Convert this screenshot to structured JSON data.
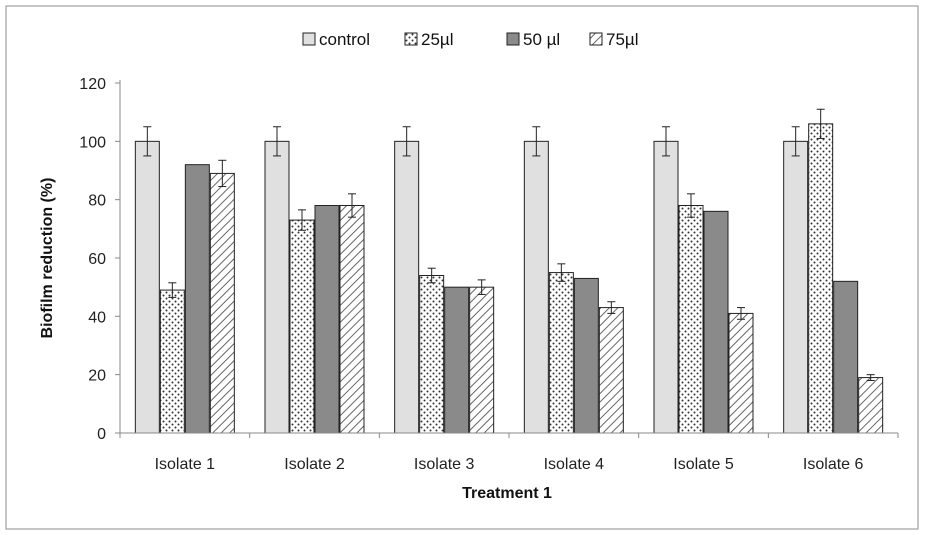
{
  "chart_data": {
    "type": "bar",
    "title": "",
    "xlabel": "Treatment 1",
    "ylabel": "Biofilm reduction (%)",
    "ylim": [
      0,
      120
    ],
    "yticks": [
      0,
      20,
      40,
      60,
      80,
      100,
      120
    ],
    "grid": false,
    "legend_position": "top",
    "categories": [
      "Isolate 1",
      "Isolate 2",
      "Isolate 3",
      "Isolate 4",
      "Isolate 5",
      "Isolate 6"
    ],
    "series": [
      {
        "name": "control",
        "pattern": "solid-light",
        "color": "#e0e0e0",
        "values": [
          100,
          100,
          100,
          100,
          100,
          100
        ],
        "errors": [
          5,
          5,
          5,
          5,
          5,
          5
        ]
      },
      {
        "name": "25µl",
        "pattern": "dots",
        "color": "#ffffff",
        "values": [
          49,
          73,
          54,
          55,
          78,
          106
        ],
        "errors": [
          2.5,
          3.5,
          2.5,
          3,
          4,
          5
        ]
      },
      {
        "name": "50 µl",
        "pattern": "solid-dark",
        "color": "#8a8a8a",
        "values": [
          92,
          78,
          50,
          53,
          76,
          52
        ],
        "errors": [
          0,
          0,
          0,
          0,
          0,
          0
        ]
      },
      {
        "name": "75µl",
        "pattern": "diagonal",
        "color": "#ffffff",
        "values": [
          89,
          78,
          50,
          43,
          41,
          19
        ],
        "errors": [
          4.5,
          4,
          2.5,
          2,
          2,
          1
        ]
      }
    ]
  }
}
